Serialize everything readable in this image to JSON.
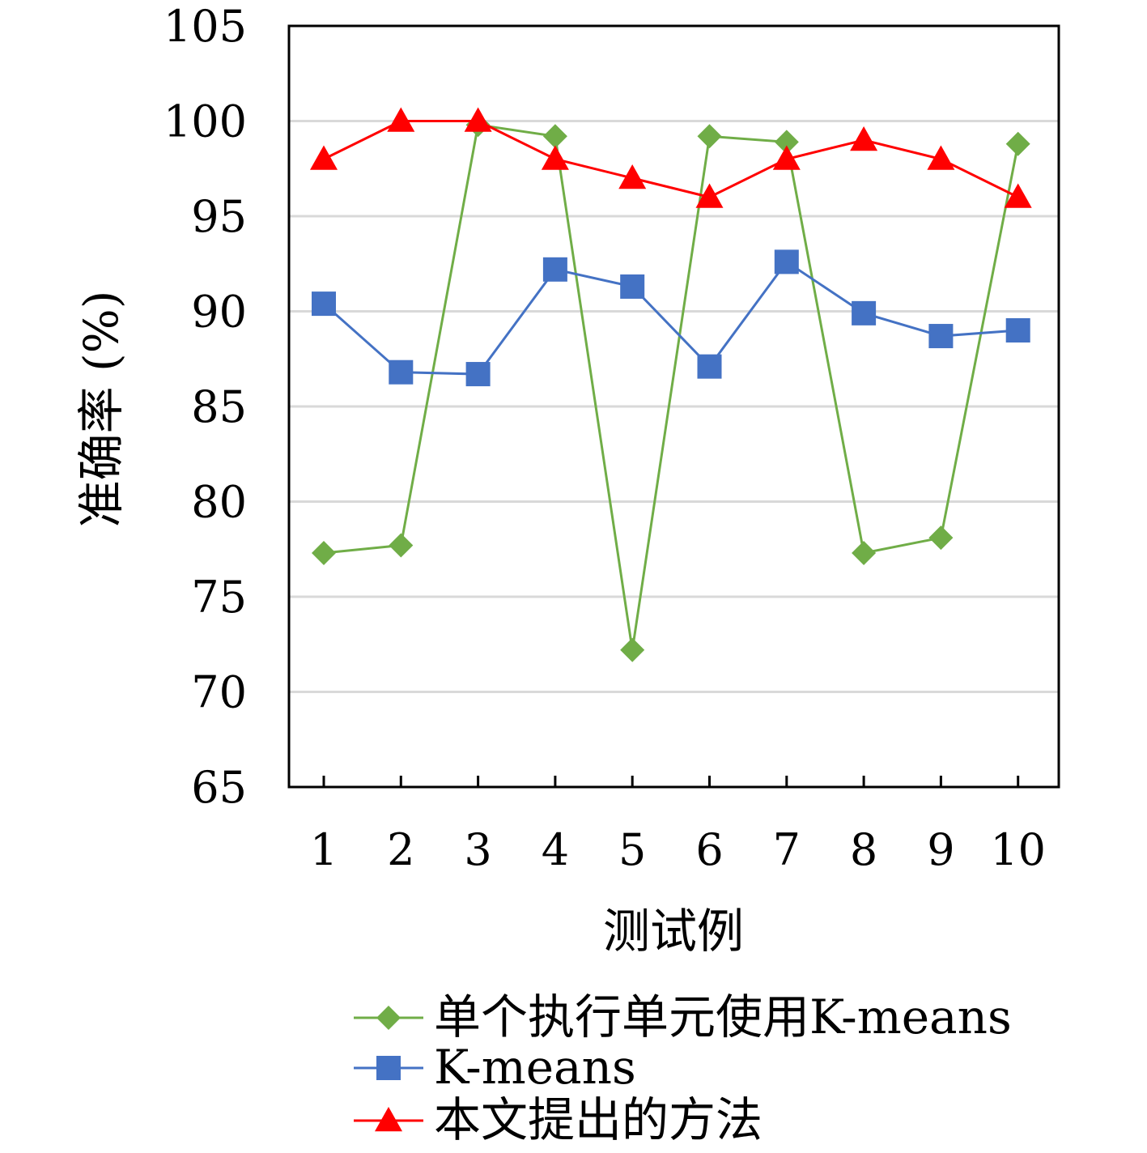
{
  "chart_data": {
    "type": "line",
    "categories": [
      "1",
      "2",
      "3",
      "4",
      "5",
      "6",
      "7",
      "8",
      "9",
      "10"
    ],
    "xlabel": "测试例",
    "ylabel": "准确率 (%)",
    "ylim": [
      65,
      105
    ],
    "yticks": [
      "65",
      "70",
      "75",
      "80",
      "85",
      "90",
      "95",
      "100",
      "105"
    ],
    "grid": true,
    "legend_position": "bottom-right",
    "series": [
      {
        "name": "单个执行单元使用K-means",
        "color": "#70ad47",
        "marker": "diamond",
        "values": [
          77.3,
          77.7,
          99.8,
          99.2,
          72.2,
          99.2,
          98.9,
          77.3,
          78.1,
          98.8
        ]
      },
      {
        "name": "K-means",
        "color": "#4472c4",
        "marker": "square",
        "values": [
          90.4,
          86.8,
          86.7,
          92.2,
          91.3,
          87.1,
          92.6,
          89.9,
          88.7,
          89.0
        ]
      },
      {
        "name": "本文提出的方法",
        "color": "#ff0000",
        "marker": "triangle",
        "values": [
          98.0,
          100.0,
          100.0,
          98.0,
          97.0,
          96.0,
          98.0,
          99.0,
          98.0,
          96.0
        ]
      }
    ]
  }
}
